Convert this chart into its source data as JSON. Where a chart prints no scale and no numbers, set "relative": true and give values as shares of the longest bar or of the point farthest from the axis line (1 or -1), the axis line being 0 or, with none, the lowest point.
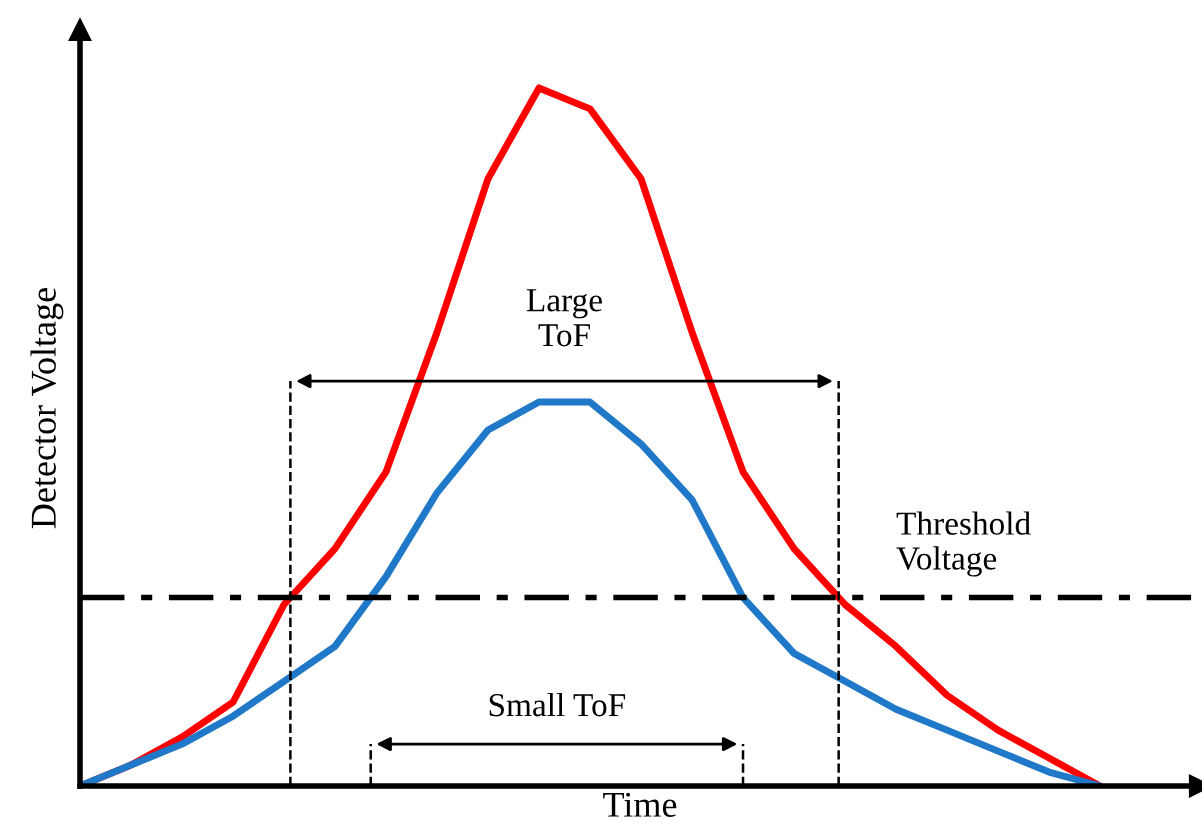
{
  "chart_data": {
    "type": "line",
    "relative": true,
    "xlabel": "Time",
    "ylabel": "Detector Voltage",
    "legend": false,
    "marker": "none",
    "line_style": "solid",
    "categories": [
      null,
      null,
      null,
      null,
      null,
      null,
      null,
      null,
      null,
      null,
      null,
      null,
      null,
      null,
      null,
      null,
      null,
      null,
      null,
      null,
      null
    ],
    "series": [
      {
        "color": "#ff0000",
        "values": [
          0,
          0.03,
          0.07,
          0.12,
          0.26,
          0.34,
          0.45,
          0.65,
          0.87,
          1.0,
          0.97,
          0.87,
          0.65,
          0.45,
          0.34,
          0.26,
          0.2,
          0.13,
          0.08,
          0.04,
          0
        ]
      },
      {
        "color": "#1f78c8",
        "values": [
          0,
          0.03,
          0.06,
          0.1,
          0.15,
          0.2,
          0.3,
          0.42,
          0.51,
          0.55,
          0.55,
          0.49,
          0.41,
          0.27,
          0.19,
          0.15,
          0.11,
          0.08,
          0.05,
          0.02,
          0
        ]
      }
    ],
    "ref_lines": [
      {
        "axis": "y",
        "value": 0.27,
        "label": "Threshold\nVoltage",
        "color": "#000000",
        "line_style": "dashdot"
      }
    ],
    "annotations": [
      "Large\nToF",
      "Small ToF"
    ]
  }
}
